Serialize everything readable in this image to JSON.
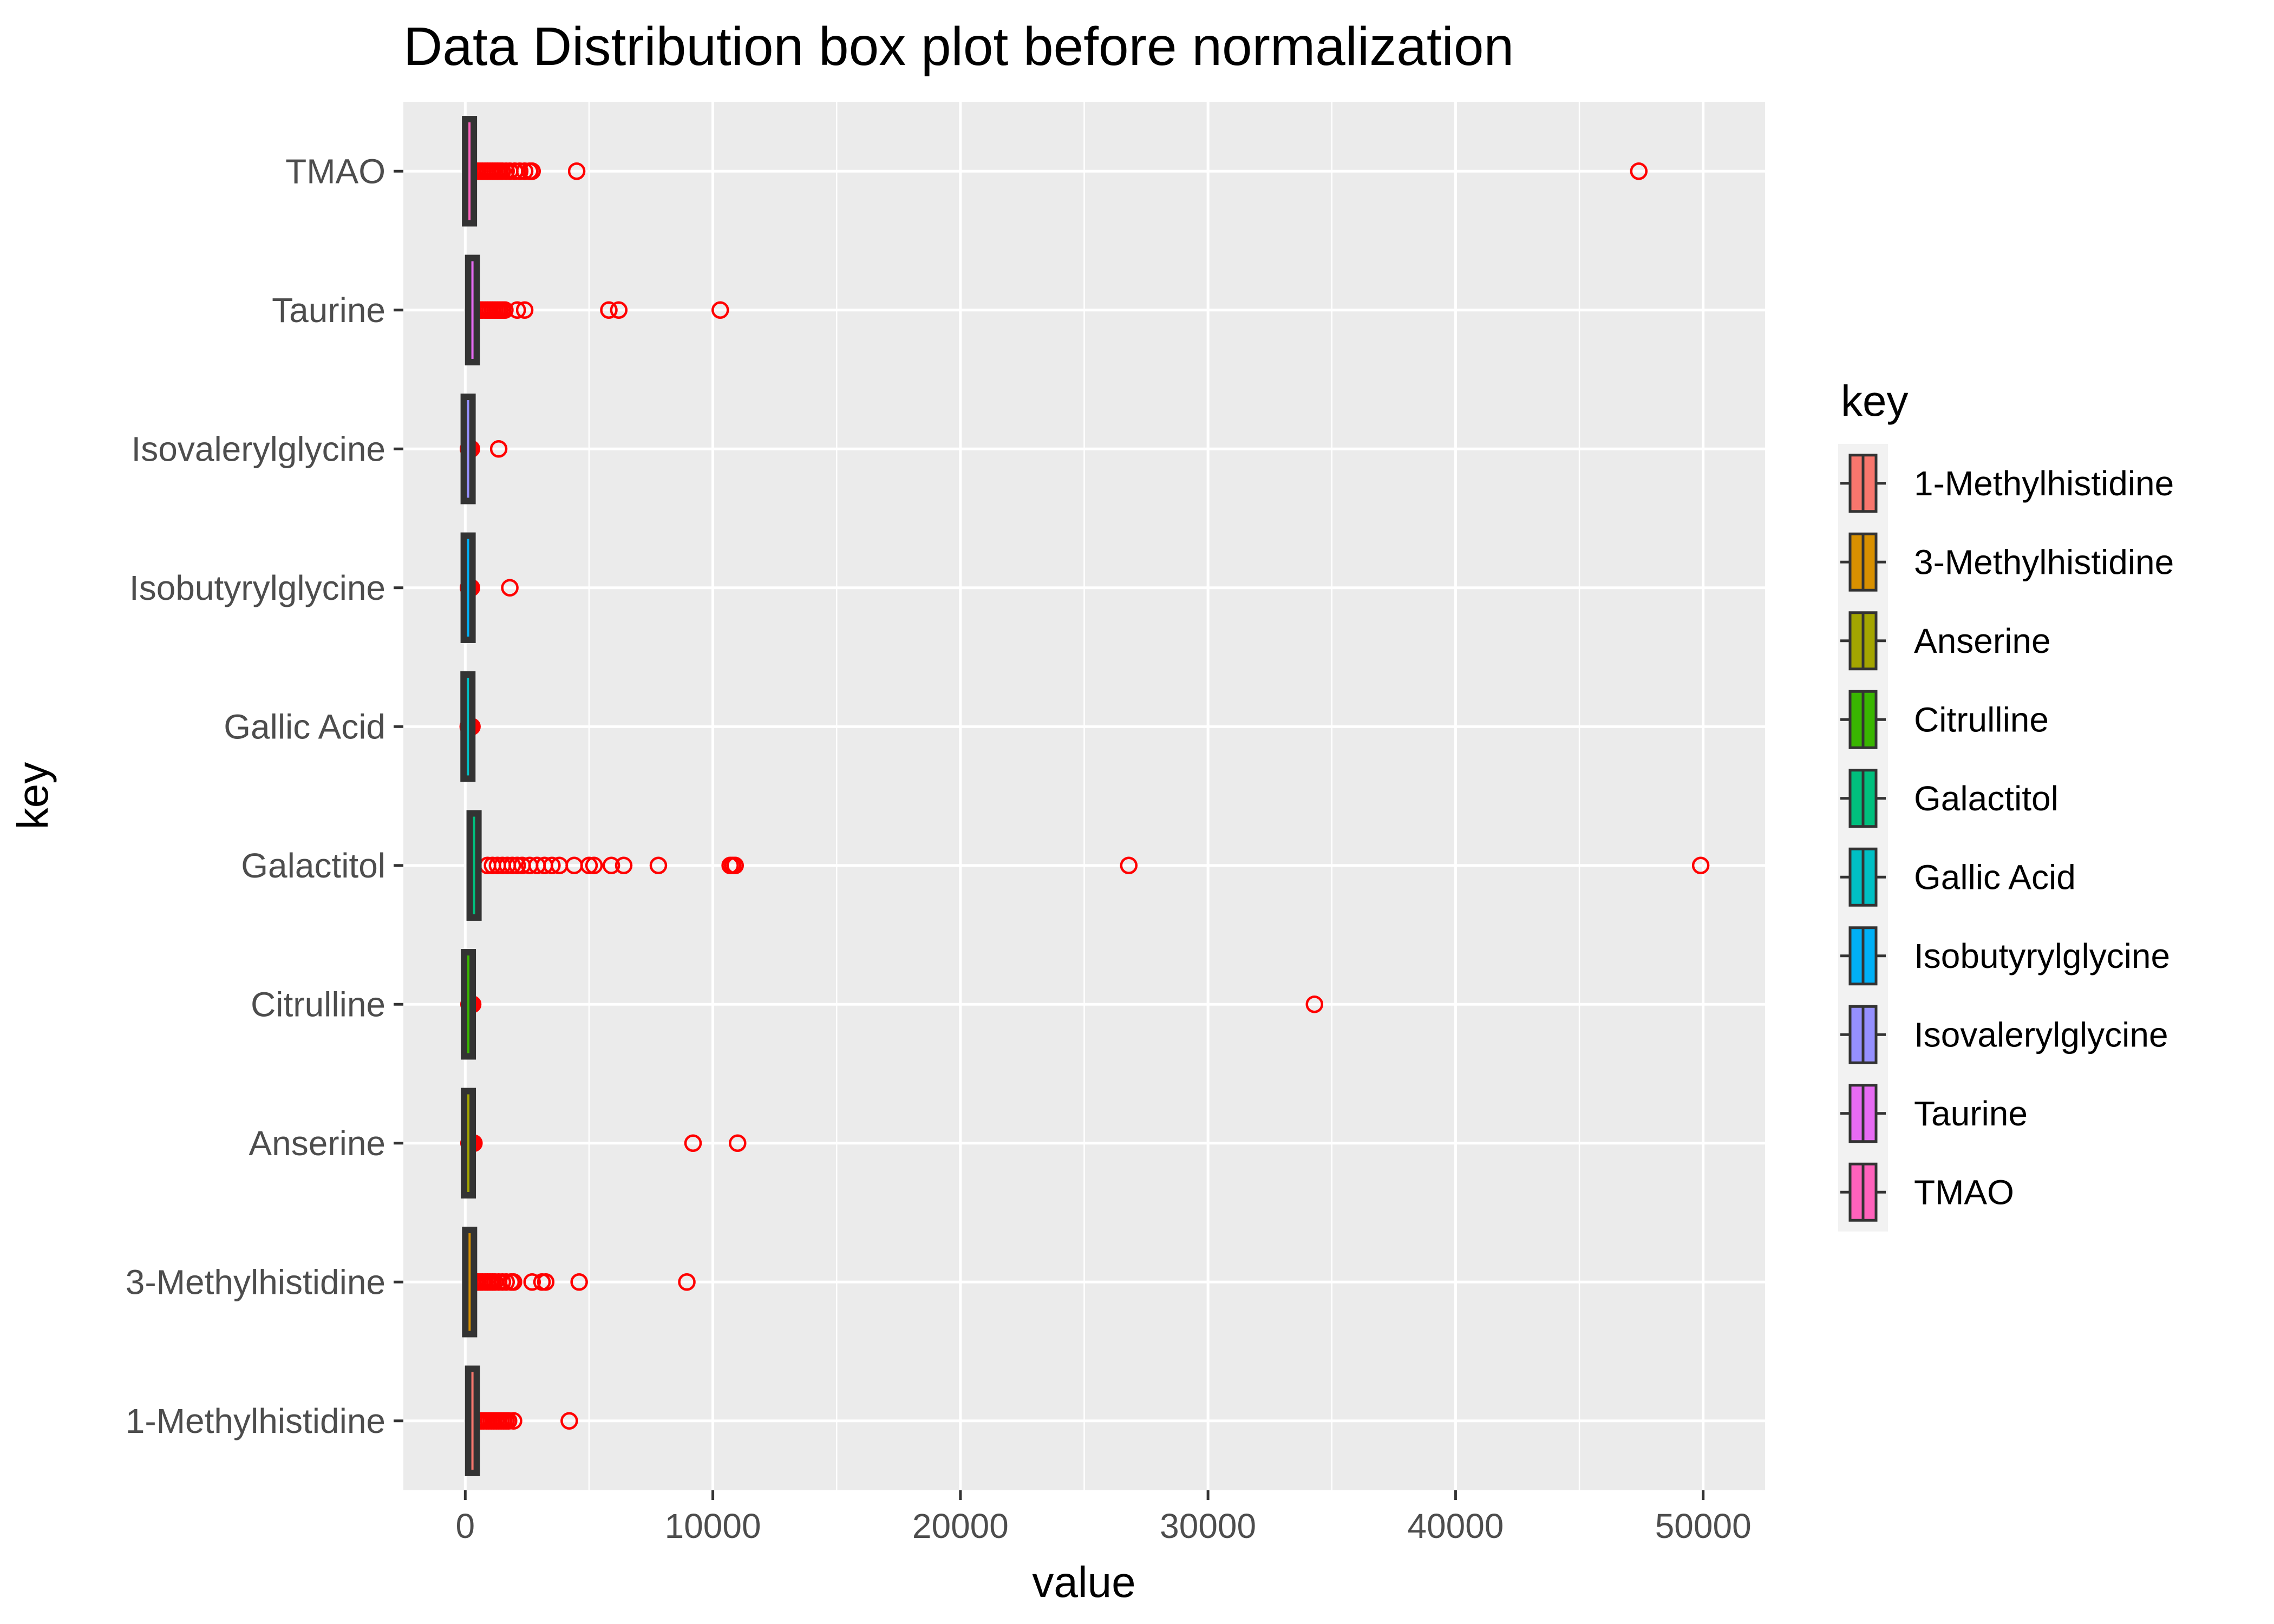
{
  "chart_data": {
    "type": "box",
    "title": "Data Distribution box plot before normalization",
    "xlabel": "value",
    "ylabel": "key",
    "xlim": [
      -2500,
      52500
    ],
    "x_ticks": [
      0,
      10000,
      20000,
      30000,
      40000,
      50000
    ],
    "x_tick_labels": [
      "0",
      "10000",
      "20000",
      "30000",
      "40000",
      "50000"
    ],
    "grid": true,
    "outlier_color": "#ff0000",
    "legend": {
      "title": "key",
      "position": "right",
      "entries": [
        {
          "label": "1-Methylhistidine",
          "color": "#F8766D"
        },
        {
          "label": "3-Methylhistidine",
          "color": "#D89000"
        },
        {
          "label": "Anserine",
          "color": "#A3A500"
        },
        {
          "label": "Citrulline",
          "color": "#39B600"
        },
        {
          "label": "Galactitol",
          "color": "#00BF7D"
        },
        {
          "label": "Gallic Acid",
          "color": "#00BFC4"
        },
        {
          "label": "Isobutyrylglycine",
          "color": "#00B0F6"
        },
        {
          "label": "Isovalerylglycine",
          "color": "#9590FF"
        },
        {
          "label": "Taurine",
          "color": "#E76BF3"
        },
        {
          "label": "TMAO",
          "color": "#FF62BC"
        }
      ]
    },
    "categories": [
      "1-Methylhistidine",
      "3-Methylhistidine",
      "Anserine",
      "Citrulline",
      "Galactitol",
      "Gallic Acid",
      "Isobutyrylglycine",
      "Isovalerylglycine",
      "Taurine",
      "TMAO"
    ],
    "series": [
      {
        "key": "1-Methylhistidine",
        "box": [
          100,
          170,
          220,
          280,
          350
        ],
        "outliers": [
          550,
          650,
          750,
          850,
          950,
          1050,
          1150,
          1250,
          1350,
          1450,
          1550,
          1650,
          1750,
          1950,
          4200
        ]
      },
      {
        "key": "3-Methylhistidine",
        "box": [
          30,
          70,
          110,
          150,
          220
        ],
        "outliers": [
          400,
          500,
          600,
          700,
          800,
          900,
          1000,
          1100,
          1200,
          1350,
          1500,
          1650,
          1850,
          1950,
          2700,
          3100,
          3250,
          4600,
          8950
        ]
      },
      {
        "key": "Anserine",
        "box": [
          20,
          40,
          60,
          80,
          110
        ],
        "outliers": [
          150,
          200,
          250,
          300,
          350,
          9200,
          11000
        ]
      },
      {
        "key": "Citrulline",
        "box": [
          20,
          40,
          60,
          80,
          110
        ],
        "outliers": [
          150,
          200,
          250,
          300,
          34300
        ]
      },
      {
        "key": "Galactitol",
        "box": [
          100,
          200,
          280,
          380,
          500
        ],
        "outliers": [
          900,
          1100,
          1300,
          1500,
          1700,
          1900,
          2100,
          2300,
          2600,
          2900,
          3200,
          3500,
          3800,
          4400,
          5000,
          5200,
          5900,
          6400,
          7800,
          10700,
          10800,
          10900,
          26800,
          49900
        ]
      },
      {
        "key": "Gallic Acid",
        "box": [
          10,
          25,
          40,
          60,
          90
        ],
        "outliers": [
          120,
          150,
          180,
          210,
          240,
          270
        ]
      },
      {
        "key": "Isobutyrylglycine",
        "box": [
          10,
          30,
          50,
          70,
          100
        ],
        "outliers": [
          130,
          160,
          190,
          220,
          250,
          1800
        ]
      },
      {
        "key": "Isovalerylglycine",
        "box": [
          10,
          30,
          50,
          70,
          100
        ],
        "outliers": [
          130,
          160,
          190,
          220,
          250,
          1350
        ]
      },
      {
        "key": "Taurine",
        "box": [
          80,
          160,
          220,
          290,
          380
        ],
        "outliers": [
          600,
          700,
          800,
          900,
          1000,
          1100,
          1200,
          1300,
          1400,
          1500,
          1600,
          2100,
          2400,
          5800,
          6200,
          10300
        ]
      },
      {
        "key": "TMAO",
        "box": [
          20,
          60,
          100,
          150,
          220
        ],
        "outliers": [
          400,
          500,
          600,
          700,
          800,
          900,
          1000,
          1100,
          1200,
          1300,
          1400,
          1500,
          1650,
          1800,
          2000,
          2200,
          2400,
          2600,
          2700,
          4500,
          47400
        ]
      }
    ]
  }
}
